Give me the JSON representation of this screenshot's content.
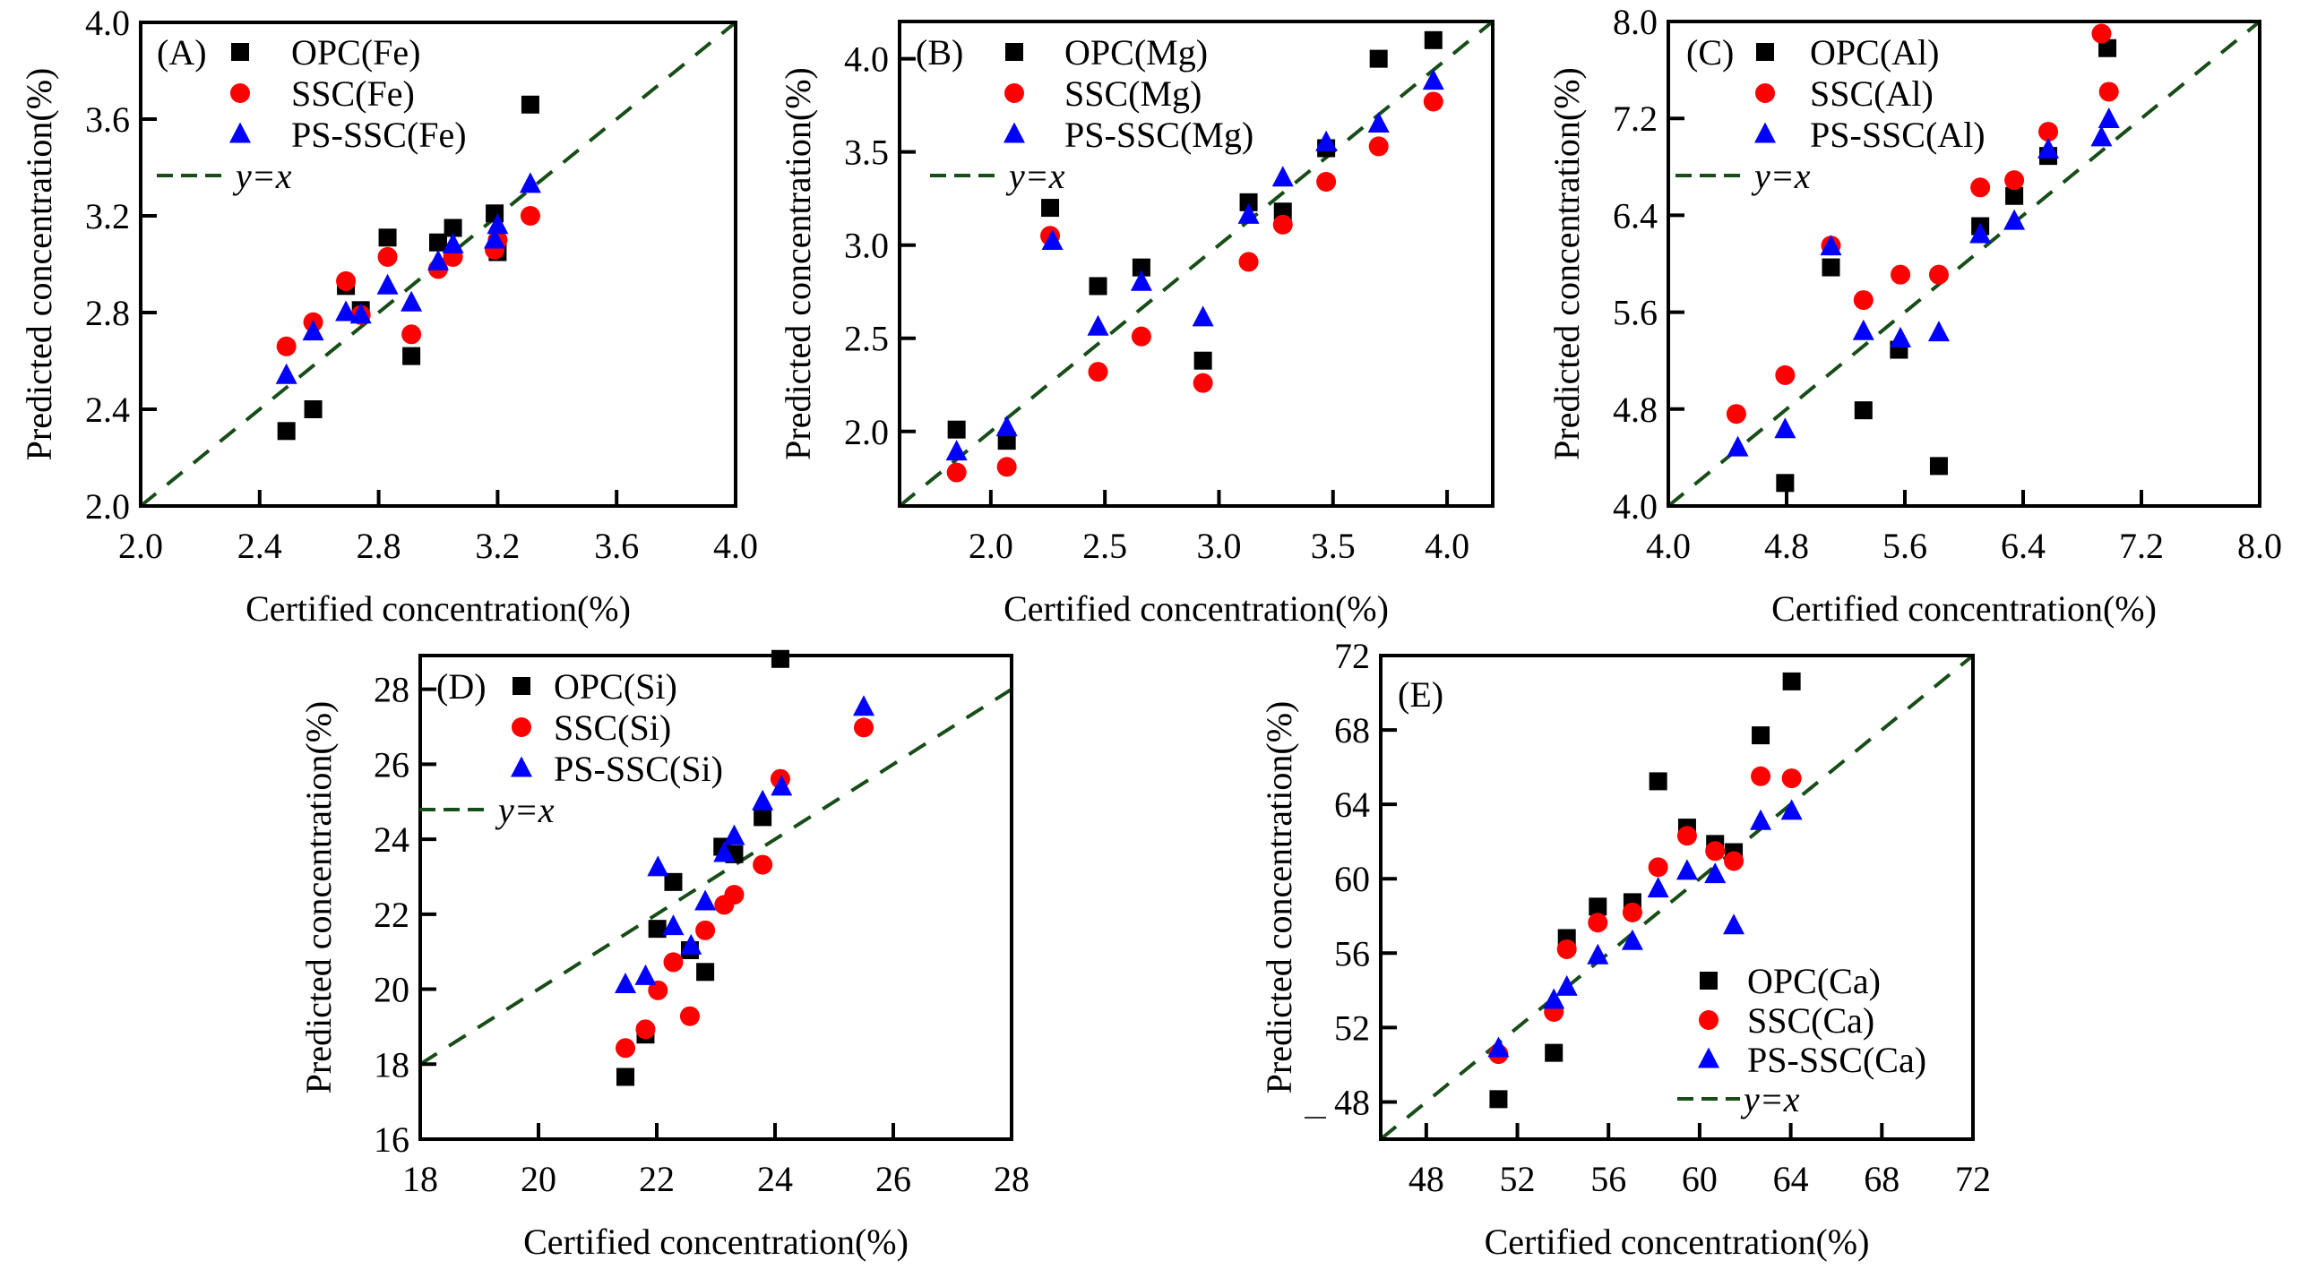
{
  "figure": {
    "colors": {
      "OPC": "#000000",
      "SSC": "#ff0000",
      "PS-SSC": "#0000ff",
      "identity_line": "#174d17",
      "axes": "#000000"
    }
  },
  "chart_data": [
    {
      "id": "A",
      "type": "scatter",
      "panel_label": "(A)",
      "xlabel": "Certified concentration(%)",
      "ylabel": "Predicted concentration(%)",
      "xlim": [
        2.0,
        4.0
      ],
      "ylim": [
        2.0,
        4.0
      ],
      "xticks": [
        "2.0",
        "2.4",
        "2.8",
        "3.2",
        "3.6",
        "4.0"
      ],
      "yticks": [
        "2.0",
        "2.4",
        "2.8",
        "3.2",
        "3.6",
        "4.0"
      ],
      "legend_position": "top-left",
      "identity_label": "y=x",
      "grid": false,
      "series": [
        {
          "name": "OPC(Fe)",
          "marker": "square",
          "color_key": "OPC",
          "x": [
            2.49,
            2.58,
            2.69,
            2.74,
            2.83,
            2.91,
            3.0,
            3.05,
            3.19,
            3.2,
            3.31
          ],
          "y": [
            2.31,
            2.4,
            2.91,
            2.81,
            3.11,
            2.62,
            3.09,
            3.15,
            3.21,
            3.05,
            3.66
          ]
        },
        {
          "name": "SSC(Fe)",
          "marker": "circle",
          "color_key": "SSC",
          "x": [
            2.49,
            2.58,
            2.69,
            2.74,
            2.83,
            2.91,
            3.0,
            3.05,
            3.19,
            3.2,
            3.31
          ],
          "y": [
            2.66,
            2.76,
            2.93,
            2.79,
            3.03,
            2.71,
            2.98,
            3.03,
            3.06,
            3.1,
            3.2
          ]
        },
        {
          "name": "PS-SSC(Fe)",
          "marker": "triangle",
          "color_key": "PS-SSC",
          "x": [
            2.49,
            2.58,
            2.69,
            2.74,
            2.83,
            2.91,
            3.0,
            3.05,
            3.19,
            3.2,
            3.31
          ],
          "y": [
            2.54,
            2.72,
            2.8,
            2.79,
            2.91,
            2.84,
            3.01,
            3.08,
            3.1,
            3.16,
            3.33
          ]
        }
      ]
    },
    {
      "id": "B",
      "type": "scatter",
      "panel_label": "(B)",
      "xlabel": "Certified concentration(%)",
      "ylabel": "Predicted concentration(%)",
      "xlim": [
        1.6,
        4.2
      ],
      "ylim": [
        1.6,
        4.2
      ],
      "xticks": [
        "2.0",
        "2.5",
        "3.0",
        "3.5",
        "4.0"
      ],
      "yticks": [
        "2.0",
        "2.5",
        "3.0",
        "3.5",
        "4.0"
      ],
      "legend_position": "top-left",
      "identity_label": "y=x",
      "grid": false,
      "series": [
        {
          "name": "OPC(Mg)",
          "marker": "square",
          "color_key": "OPC",
          "x": [
            1.85,
            2.07,
            2.26,
            2.47,
            2.66,
            2.93,
            3.13,
            3.28,
            3.47,
            3.7,
            3.94
          ],
          "y": [
            2.01,
            1.95,
            3.2,
            2.78,
            2.88,
            2.38,
            3.23,
            3.18,
            3.52,
            4.0,
            4.1
          ]
        },
        {
          "name": "SSC(Mg)",
          "marker": "circle",
          "color_key": "SSC",
          "x": [
            1.85,
            2.07,
            2.26,
            2.47,
            2.66,
            2.93,
            3.13,
            3.28,
            3.47,
            3.7,
            3.94
          ],
          "y": [
            1.78,
            1.81,
            3.05,
            2.32,
            2.51,
            2.26,
            2.91,
            3.11,
            3.34,
            3.53,
            3.77
          ]
        },
        {
          "name": "PS-SSC(Mg)",
          "marker": "triangle",
          "color_key": "PS-SSC",
          "x": [
            1.85,
            2.07,
            2.27,
            2.47,
            2.66,
            2.93,
            3.13,
            3.28,
            3.47,
            3.7,
            3.94
          ],
          "y": [
            1.89,
            2.02,
            3.02,
            2.56,
            2.8,
            2.61,
            3.16,
            3.36,
            3.55,
            3.65,
            3.88
          ]
        }
      ]
    },
    {
      "id": "C",
      "type": "scatter",
      "panel_label": "(C)",
      "xlabel": "Certified concentration(%)",
      "ylabel": "Predicted concentration(%)",
      "xlim": [
        4.0,
        8.0
      ],
      "ylim": [
        4.0,
        8.0
      ],
      "xticks": [
        "4.0",
        "4.8",
        "5.6",
        "6.4",
        "7.2",
        "8.0"
      ],
      "yticks": [
        "4.0",
        "4.8",
        "5.6",
        "6.4",
        "7.2",
        "8.0"
      ],
      "legend_position": "top-left",
      "identity_label": "y=x",
      "grid": false,
      "series": [
        {
          "name": "OPC(Al)",
          "marker": "square",
          "color_key": "OPC",
          "x": [
            4.79,
            5.1,
            5.32,
            5.56,
            5.83,
            6.11,
            6.34,
            6.57,
            6.97
          ],
          "y": [
            4.19,
            5.97,
            4.79,
            5.29,
            4.33,
            6.31,
            6.56,
            6.89,
            7.78
          ]
        },
        {
          "name": "SSC(Al)",
          "marker": "circle",
          "color_key": "SSC",
          "x": [
            4.46,
            4.79,
            5.1,
            5.32,
            5.57,
            5.83,
            6.11,
            6.34,
            6.57,
            6.93,
            6.98
          ],
          "y": [
            4.76,
            5.08,
            6.15,
            5.7,
            5.91,
            5.91,
            6.63,
            6.69,
            7.09,
            7.9,
            7.42
          ]
        },
        {
          "name": "PS-SSC(Al)",
          "marker": "triangle",
          "color_key": "PS-SSC",
          "x": [
            4.47,
            4.79,
            5.1,
            5.32,
            5.57,
            5.83,
            6.11,
            6.34,
            6.57,
            6.93,
            6.98
          ],
          "y": [
            4.48,
            4.63,
            6.14,
            5.44,
            5.38,
            5.43,
            6.24,
            6.35,
            6.94,
            7.04,
            7.19
          ]
        }
      ]
    },
    {
      "id": "D",
      "type": "scatter",
      "panel_label": "(D)",
      "xlabel": "Certified concentration(%)",
      "ylabel": "Predicted concentration(%)",
      "xlim": [
        18,
        28
      ],
      "ylim": [
        16,
        28.9
      ],
      "xticks": [
        "18",
        "20",
        "22",
        "24",
        "26",
        "28"
      ],
      "yticks": [
        "16",
        "18",
        "20",
        "22",
        "24",
        "26",
        "28"
      ],
      "legend_position": "top-left",
      "identity_label": "y=x",
      "grid": false,
      "series": [
        {
          "name": "OPC(Si)",
          "marker": "square",
          "color_key": "OPC",
          "x": [
            21.47,
            21.81,
            22.01,
            22.28,
            22.56,
            22.82,
            23.11,
            23.31,
            23.79,
            24.09
          ],
          "y": [
            17.66,
            18.79,
            21.61,
            22.86,
            21.04,
            20.46,
            23.8,
            23.6,
            24.59,
            28.81
          ]
        },
        {
          "name": "SSC(Si)",
          "marker": "circle",
          "color_key": "SSC",
          "x": [
            21.47,
            21.81,
            22.02,
            22.28,
            22.56,
            22.82,
            23.14,
            23.31,
            23.79,
            24.09,
            25.5
          ],
          "y": [
            18.43,
            18.93,
            19.97,
            20.72,
            19.28,
            21.57,
            22.25,
            22.52,
            23.32,
            25.61,
            26.98
          ]
        },
        {
          "name": "PS-SSC(Si)",
          "marker": "triangle",
          "color_key": "PS-SSC",
          "x": [
            21.47,
            21.81,
            22.02,
            22.28,
            22.58,
            22.82,
            23.14,
            23.31,
            23.79,
            24.11,
            25.5
          ],
          "y": [
            20.12,
            20.34,
            23.24,
            21.67,
            21.15,
            22.33,
            23.62,
            24.07,
            25.0,
            25.39,
            27.52
          ]
        }
      ]
    },
    {
      "id": "E",
      "type": "scatter",
      "panel_label": "(E)",
      "xlabel": "Certified concentration(%)",
      "ylabel": "Predicted concentration(%)",
      "xlim": [
        46,
        72
      ],
      "ylim": [
        46,
        72
      ],
      "xticks": [
        "48",
        "52",
        "56",
        "60",
        "64",
        "68",
        "72"
      ],
      "yticks": [
        "48",
        "52",
        "56",
        "60",
        "64",
        "68",
        "72"
      ],
      "legend_position": "bottom-right",
      "identity_label": "y=x",
      "grid": false,
      "series": [
        {
          "name": "OPC(Ca)",
          "marker": "square",
          "color_key": "OPC",
          "x": [
            51.17,
            53.6,
            54.17,
            55.53,
            57.05,
            58.18,
            59.45,
            60.68,
            61.5,
            62.68,
            64.04
          ],
          "y": [
            48.15,
            50.64,
            56.81,
            58.5,
            58.74,
            65.24,
            62.75,
            61.87,
            61.43,
            67.71,
            70.61
          ]
        },
        {
          "name": "SSC(Ca)",
          "marker": "circle",
          "color_key": "SSC",
          "x": [
            51.17,
            53.6,
            54.17,
            55.53,
            57.05,
            58.18,
            59.45,
            60.68,
            61.5,
            62.68,
            64.04
          ],
          "y": [
            50.57,
            52.84,
            56.21,
            57.64,
            58.19,
            60.62,
            62.31,
            61.49,
            60.95,
            65.51,
            65.4
          ]
        },
        {
          "name": "PS-SSC(Ca)",
          "marker": "triangle",
          "color_key": "PS-SSC",
          "x": [
            51.17,
            53.6,
            54.17,
            55.53,
            57.05,
            58.18,
            59.45,
            60.68,
            61.5,
            62.68,
            64.04
          ],
          "y": [
            50.86,
            53.46,
            54.17,
            55.86,
            56.63,
            59.45,
            60.4,
            60.22,
            57.47,
            63.08,
            63.63
          ]
        }
      ]
    }
  ]
}
